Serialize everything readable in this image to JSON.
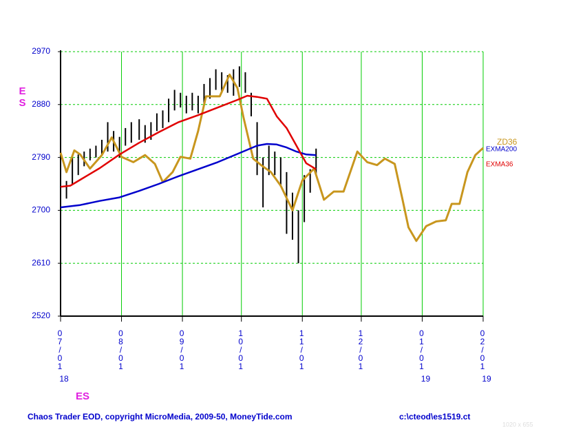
{
  "chart_data": {
    "type": "ohlc_line",
    "y_label": "ES",
    "x_label": "ES",
    "footer_left": "Chaos Trader EOD, copyright MicroMedia, 2009-50, MoneyTide.com",
    "footer_right": "c:\\cteod\\es1519.ct",
    "size_note": "1020 x 655",
    "xlim": [
      0,
      215
    ],
    "ylim": [
      2520,
      2970
    ],
    "yticks": [
      2520,
      2610,
      2700,
      2790,
      2880,
      2970
    ],
    "xticks": [
      {
        "value": 0,
        "label": "07/01"
      },
      {
        "value": 31,
        "label": "08/01"
      },
      {
        "value": 62,
        "label": "09/01"
      },
      {
        "value": 92,
        "label": "10/01"
      },
      {
        "value": 123,
        "label": "11/01"
      },
      {
        "value": 153,
        "label": "12/01"
      },
      {
        "value": 184,
        "label": "01/01"
      },
      {
        "value": 215,
        "label": "02/01"
      }
    ],
    "year_ticks": [
      {
        "value": 0,
        "label": "18"
      },
      {
        "value": 184,
        "label": "19"
      },
      {
        "value": 215,
        "label": "19"
      }
    ],
    "grid": true,
    "bar_color": "#000000",
    "bars": {
      "x": [
        0,
        3,
        6,
        9,
        12,
        15,
        18,
        21,
        24,
        27,
        30,
        33,
        36,
        40,
        43,
        46,
        49,
        52,
        55,
        58,
        61,
        64,
        67,
        70,
        73,
        76,
        79,
        82,
        85,
        88,
        91,
        94,
        97,
        100,
        103,
        106,
        109,
        112,
        115,
        118,
        121,
        124,
        127,
        130
      ],
      "high": [
        2745,
        2750,
        2790,
        2795,
        2800,
        2805,
        2810,
        2820,
        2850,
        2835,
        2825,
        2840,
        2850,
        2855,
        2845,
        2850,
        2865,
        2870,
        2890,
        2905,
        2900,
        2895,
        2900,
        2895,
        2915,
        2925,
        2940,
        2935,
        2930,
        2940,
        2945,
        2935,
        2900,
        2850,
        2790,
        2810,
        2800,
        2790,
        2765,
        2730,
        2700,
        2760,
        2770,
        2805
      ],
      "low": [
        2710,
        2720,
        2745,
        2760,
        2775,
        2785,
        2790,
        2795,
        2800,
        2800,
        2790,
        2810,
        2815,
        2820,
        2815,
        2820,
        2835,
        2840,
        2850,
        2870,
        2875,
        2865,
        2870,
        2865,
        2880,
        2890,
        2905,
        2900,
        2900,
        2895,
        2910,
        2900,
        2860,
        2760,
        2705,
        2760,
        2760,
        2740,
        2660,
        2650,
        2610,
        2680,
        2730,
        2760
      ]
    },
    "series": [
      {
        "name": "ZD36",
        "color": "#c8961e",
        "x": [
          0,
          3,
          7,
          10,
          15,
          21,
          26,
          31,
          37,
          43,
          48,
          52,
          57,
          61,
          66,
          70,
          74,
          81,
          86,
          90,
          93,
          98,
          102,
          107,
          112,
          118,
          123,
          129,
          134,
          139,
          144,
          151,
          156,
          161,
          165,
          170,
          174,
          177,
          181,
          186,
          191,
          196,
          199,
          203,
          207,
          211,
          215
        ],
        "values": [
          2798,
          2765,
          2802,
          2795,
          2771,
          2794,
          2824,
          2791,
          2782,
          2794,
          2779,
          2748,
          2765,
          2791,
          2788,
          2835,
          2894,
          2894,
          2931,
          2908,
          2859,
          2788,
          2777,
          2765,
          2742,
          2700,
          2751,
          2771,
          2718,
          2732,
          2732,
          2800,
          2782,
          2777,
          2788,
          2779,
          2718,
          2671,
          2648,
          2673,
          2681,
          2683,
          2711,
          2711,
          2765,
          2794,
          2806
        ]
      },
      {
        "name": "EXMA200",
        "color": "#0000cc",
        "x": [
          0,
          10,
          20,
          30,
          40,
          50,
          60,
          70,
          80,
          90,
          100,
          105,
          110,
          115,
          120,
          125,
          130
        ],
        "values": [
          2705,
          2709,
          2716,
          2722,
          2733,
          2745,
          2758,
          2770,
          2782,
          2796,
          2810,
          2813,
          2812,
          2807,
          2800,
          2795,
          2794
        ]
      },
      {
        "name": "EXMA36",
        "color": "#e00000",
        "x": [
          0,
          5,
          10,
          20,
          30,
          40,
          50,
          60,
          70,
          80,
          90,
          95,
          100,
          105,
          110,
          115,
          120,
          125,
          130
        ],
        "values": [
          2740,
          2742,
          2752,
          2772,
          2795,
          2815,
          2833,
          2850,
          2862,
          2875,
          2888,
          2895,
          2893,
          2890,
          2860,
          2840,
          2810,
          2780,
          2770
        ]
      }
    ]
  }
}
